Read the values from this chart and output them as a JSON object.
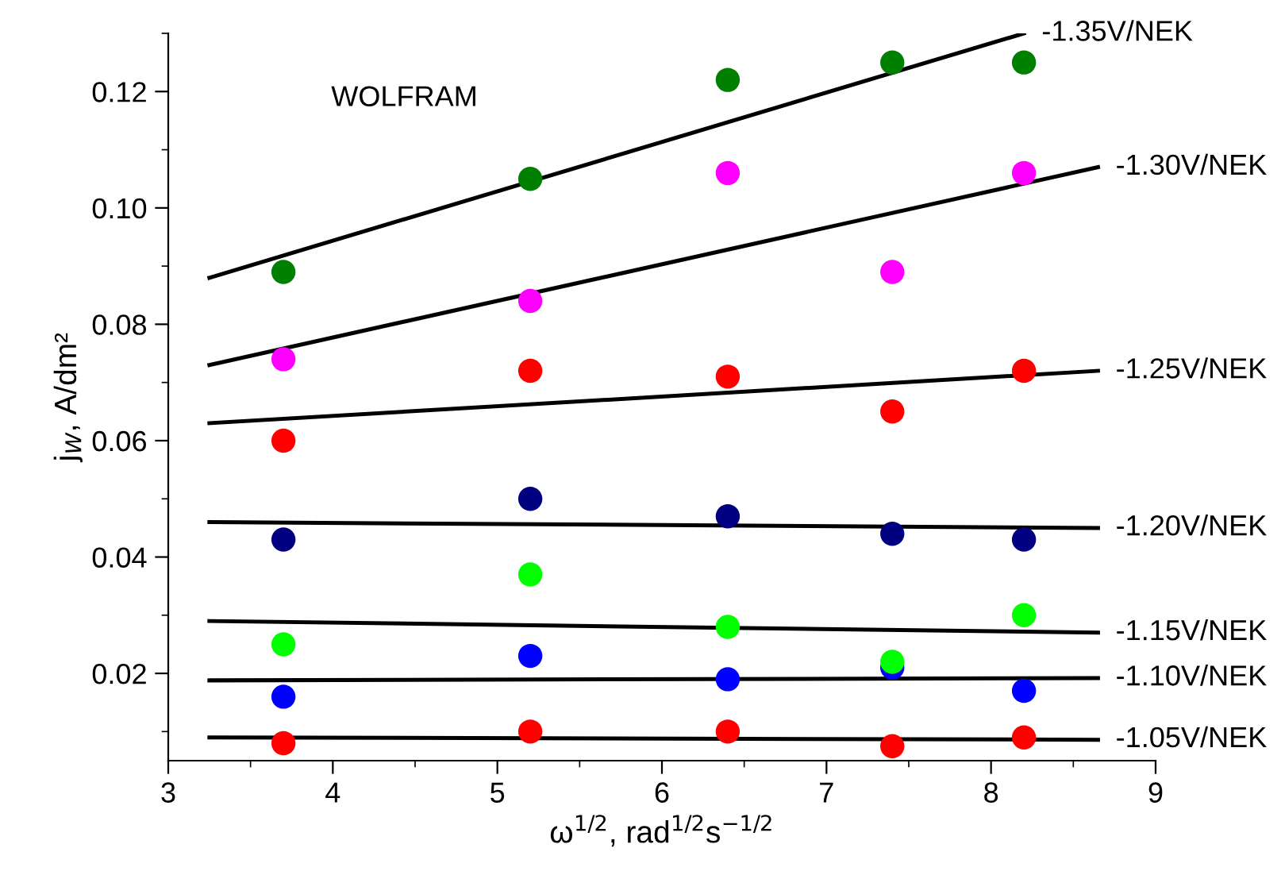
{
  "chart_data": {
    "type": "scatter",
    "xlabel": "ω$^{1/2}$, rad$^{1/2}$s$^{−1/2}$",
    "ylabel": "j$_{W}$, A/dm²",
    "annotations": [
      "WOLFRAM"
    ],
    "xlim": [
      3,
      9
    ],
    "xticks": [
      3,
      4,
      5,
      6,
      7,
      8,
      9
    ],
    "ylim": [
      0.005,
      0.13
    ],
    "yticks": [
      {
        "value": 0.02,
        "label": "0.02"
      },
      {
        "value": 0.04,
        "label": "0.04"
      },
      {
        "value": 0.06,
        "label": "0.06"
      },
      {
        "value": 0.08,
        "label": "0.08"
      },
      {
        "value": 0.1,
        "label": "0.10"
      },
      {
        "value": 0.12,
        "label": "0.12"
      }
    ],
    "grid": false,
    "legend": false,
    "x": [
      3.7,
      5.2,
      6.4,
      7.4,
      8.2
    ],
    "series": [
      {
        "marker": "circle",
        "color": "#008000",
        "values": [
          0.089,
          0.105,
          0.122,
          0.125,
          0.125
        ]
      },
      {
        "marker": "circle",
        "color": "#ff00ff",
        "values": [
          0.074,
          0.084,
          0.106,
          0.089,
          0.106
        ]
      },
      {
        "marker": "circle",
        "color": "#ff0000",
        "values": [
          0.06,
          0.072,
          0.071,
          0.065,
          0.072
        ]
      },
      {
        "marker": "circle",
        "color": "#000080",
        "values": [
          0.043,
          0.05,
          0.047,
          0.044,
          0.043
        ]
      },
      {
        "marker": "circle",
        "color": "#00ff00",
        "values": [
          0.025,
          0.037,
          0.028,
          0.022,
          0.03
        ]
      },
      {
        "marker": "circle",
        "color": "#0000ff",
        "values": [
          0.016,
          0.023,
          0.019,
          0.021,
          0.017
        ]
      },
      {
        "marker": "circle",
        "color": "#ff0000",
        "values": [
          0.008,
          0.01,
          0.01,
          0.0075,
          0.009
        ]
      },
      {
        "type": "line",
        "name": "-1.35V/NEK",
        "color": "#000000",
        "x": [
          3.25,
          8.2
        ],
        "values": [
          0.088,
          0.13
        ]
      },
      {
        "type": "line",
        "name": "-1.30V/NEK",
        "color": "#000000",
        "x": [
          3.25,
          8.65
        ],
        "values": [
          0.073,
          0.107
        ]
      },
      {
        "type": "line",
        "name": "-1.25V/NEK",
        "color": "#000000",
        "x": [
          3.25,
          8.65
        ],
        "values": [
          0.063,
          0.072
        ]
      },
      {
        "type": "line",
        "name": "-1.20V/NEK",
        "color": "#000000",
        "x": [
          3.25,
          8.65
        ],
        "values": [
          0.046,
          0.045
        ]
      },
      {
        "type": "line",
        "name": "-1.15V/NEK",
        "color": "#000000",
        "x": [
          3.25,
          8.65
        ],
        "values": [
          0.029,
          0.027
        ]
      },
      {
        "type": "line",
        "name": "-1.10V/NEK",
        "color": "#000000",
        "x": [
          3.25,
          8.65
        ],
        "values": [
          0.0188,
          0.0192
        ]
      },
      {
        "type": "line",
        "name": "-1.05V/NEK",
        "color": "#000000",
        "x": [
          3.25,
          8.65
        ],
        "values": [
          0.009,
          0.0086
        ]
      }
    ]
  }
}
